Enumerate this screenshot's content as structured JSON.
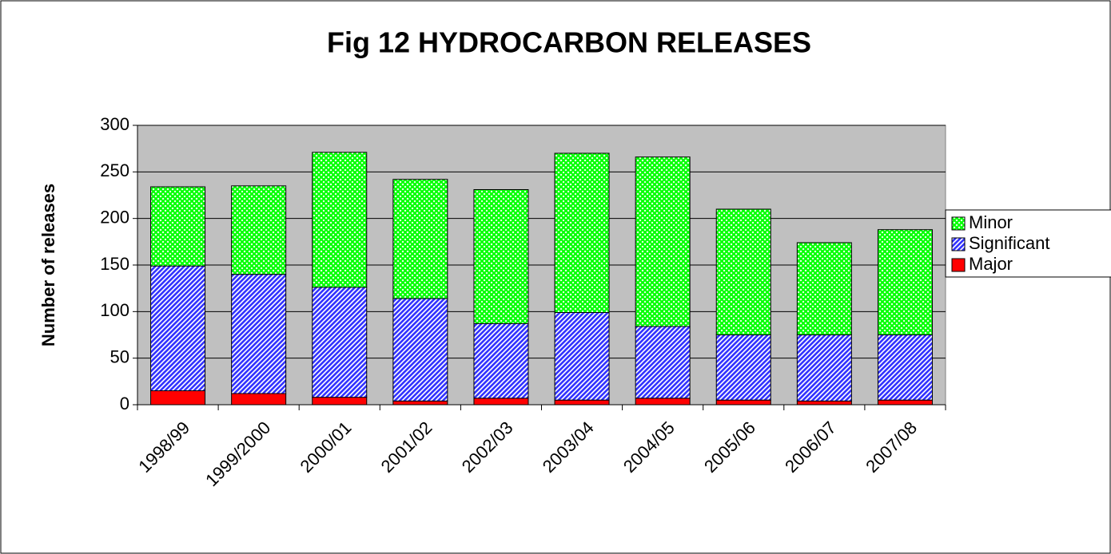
{
  "chart_data": {
    "type": "stacked-bar",
    "title": "Fig 12 HYDROCARBON RELEASES",
    "y_label": "Number of releases",
    "categories": [
      "1998/99",
      "1999/2000",
      "2000/01",
      "2001/02",
      "2002/03",
      "2003/04",
      "2004/05",
      "2005/06",
      "2006/07",
      "2007/08"
    ],
    "series": [
      {
        "name": "Major",
        "color": "#ff0000",
        "values": [
          15,
          12,
          8,
          4,
          7,
          5,
          7,
          5,
          4,
          5
        ]
      },
      {
        "name": "Significant",
        "color": "#3333ff",
        "values": [
          134,
          128,
          118,
          110,
          80,
          94,
          77,
          70,
          71,
          70
        ]
      },
      {
        "name": "Minor",
        "color": "#00ff00",
        "values": [
          85,
          95,
          145,
          128,
          144,
          171,
          182,
          135,
          99,
          113
        ]
      }
    ],
    "ylim": [
      0,
      300
    ],
    "yticks": [
      0,
      50,
      100,
      150,
      200,
      250,
      300
    ],
    "grid": true,
    "legend": "right"
  }
}
